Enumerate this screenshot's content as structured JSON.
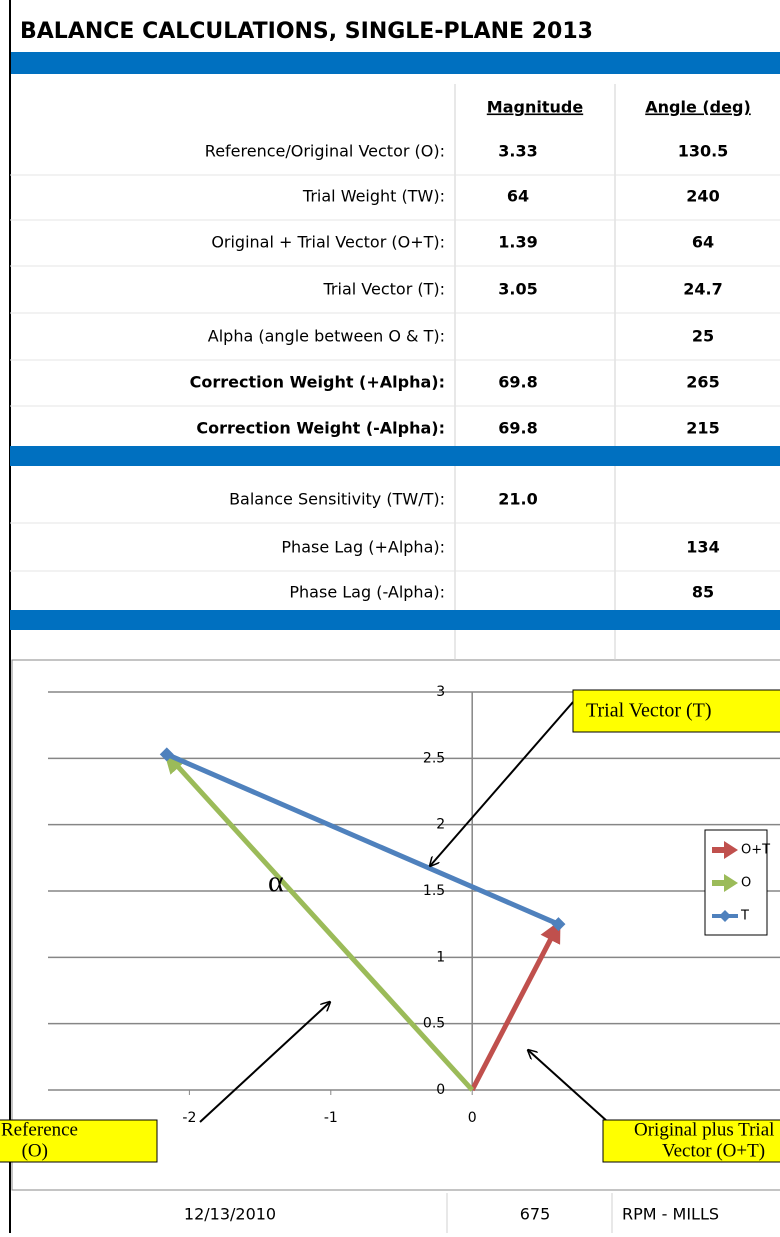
{
  "sheet": {
    "title": "BALANCE CALCULATIONS, SINGLE-PLANE 2013",
    "header": {
      "magnitude": "Magnitude",
      "angle": "Angle (deg)"
    },
    "sections": [
      {
        "rows": [
          {
            "label": "Reference/Original Vector (O):",
            "magnitude": "3.33",
            "angle": "130.5",
            "value_color": "#ff0000"
          },
          {
            "label": "Trial Weight (TW):",
            "magnitude": "64",
            "angle": "240",
            "value_color": "#ff0000"
          },
          {
            "label": "Original + Trial Vector (O+T):",
            "magnitude": "1.39",
            "angle": "64",
            "value_color": "#ff0000"
          },
          {
            "label": "Trial Vector (T):",
            "magnitude": "3.05",
            "angle": "24.7"
          },
          {
            "label": "Alpha (angle between O & T):",
            "angle": "25"
          },
          {
            "label": "Correction Weight (+Alpha):",
            "magnitude": "69.8",
            "angle": "265",
            "bold_label": true
          },
          {
            "label": "Correction Weight (-Alpha):",
            "magnitude": "69.8",
            "angle": "215",
            "bold_label": true
          }
        ]
      },
      {
        "rows": [
          {
            "label": "Balance Sensitivity (TW/T):",
            "magnitude": "21.0"
          },
          {
            "label": "Phase Lag (+Alpha):",
            "angle": "134"
          },
          {
            "label": "Phase Lag (-Alpha):",
            "angle": "85"
          }
        ]
      }
    ],
    "footer": [
      "12/13/2010",
      "675",
      "RPM - MILLS"
    ]
  },
  "chart_data": {
    "type": "line",
    "series": [
      {
        "name": "O+T",
        "color": "#c0504d",
        "x": [
          0,
          0.61
        ],
        "values": [
          0,
          1.25
        ],
        "marker": "arrow"
      },
      {
        "name": "O",
        "color": "#9bbb59",
        "x": [
          0,
          -2.16
        ],
        "values": [
          0,
          2.53
        ],
        "marker": "arrow"
      },
      {
        "name": "T",
        "color": "#4f81bd",
        "x": [
          -2.16,
          0.61
        ],
        "values": [
          2.53,
          1.25
        ],
        "marker": "diamond"
      }
    ],
    "xlim": [
      -3,
      2
    ],
    "xticks": [
      -2,
      -1,
      0
    ],
    "ylim": [
      0,
      3
    ],
    "yticks": [
      0,
      0.5,
      1,
      1.5,
      2,
      2.5,
      3
    ],
    "grid": true,
    "legend": "right",
    "annotations": {
      "alpha": "α",
      "trial": "Trial Vector (T)",
      "reference": [
        "Reference",
        "(O)"
      ],
      "original_plus_trial": [
        "Original plus Trial",
        "Vector (O+T)"
      ]
    }
  }
}
